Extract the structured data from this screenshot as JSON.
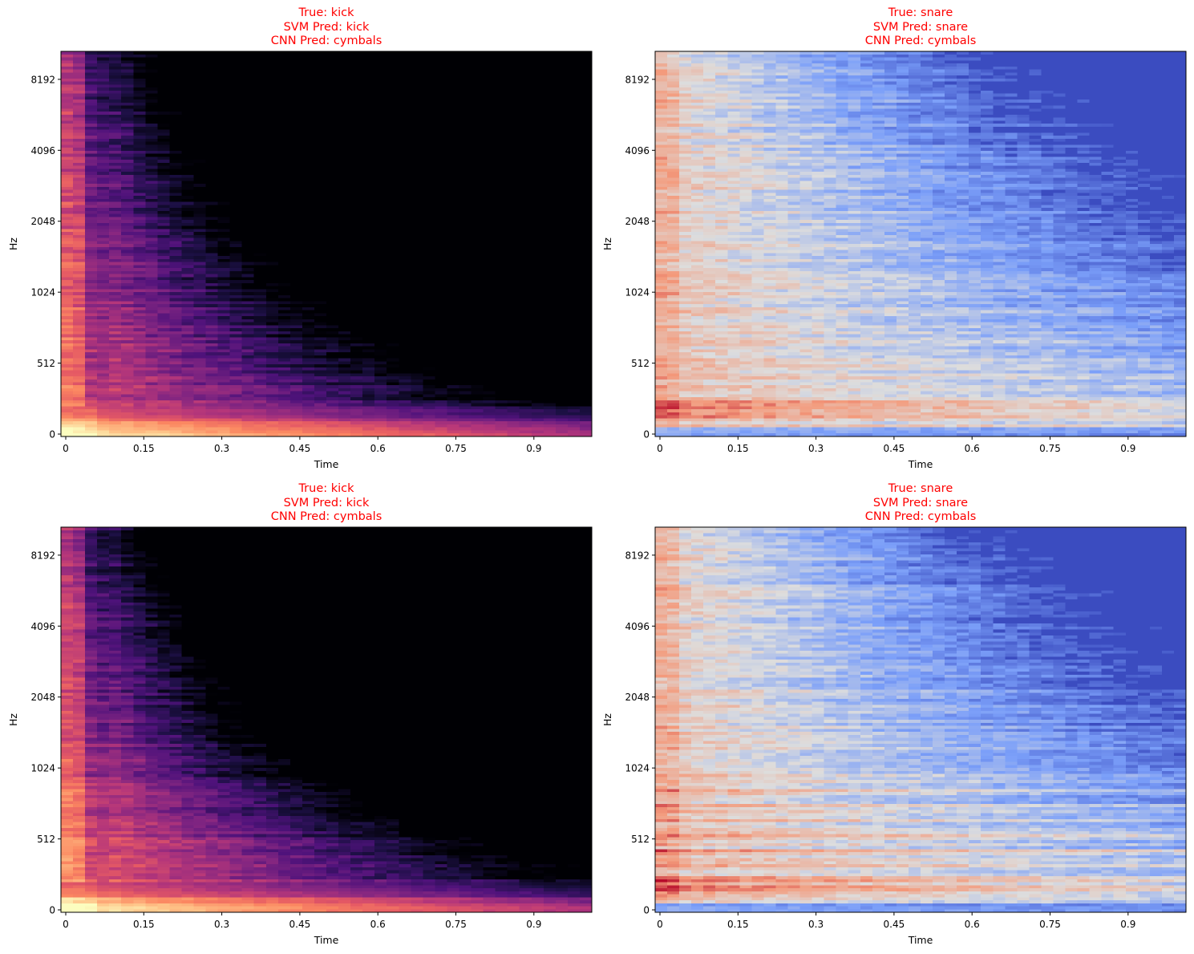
{
  "chart_data": [
    {
      "type": "heatmap",
      "title_lines": [
        "True: kick",
        "SVM Pred: kick",
        "CNN Pred: cymbals"
      ],
      "true_label": "kick",
      "svm_pred": "kick",
      "cnn_pred": "cymbals",
      "title_color": "#ff0000",
      "xlabel": "Time",
      "ylabel": "Hz",
      "xticks": [
        "0",
        "0.15",
        "0.3",
        "0.45",
        "0.6",
        "0.75",
        "0.9"
      ],
      "yticks": [
        "0",
        "512",
        "1024",
        "2048",
        "4096",
        "8192"
      ],
      "xlim": [
        0,
        1.0
      ],
      "ylim": [
        0,
        11025
      ],
      "yscale": "mel/symlog",
      "colormap": "magma",
      "grid": false
    },
    {
      "type": "heatmap",
      "title_lines": [
        "True: snare",
        "SVM Pred: snare",
        "CNN Pred: cymbals"
      ],
      "true_label": "snare",
      "svm_pred": "snare",
      "cnn_pred": "cymbals",
      "title_color": "#ff0000",
      "xlabel": "Time",
      "ylabel": "Hz",
      "xticks": [
        "0",
        "0.15",
        "0.3",
        "0.45",
        "0.6",
        "0.75",
        "0.9"
      ],
      "yticks": [
        "0",
        "512",
        "1024",
        "2048",
        "4096",
        "8192"
      ],
      "xlim": [
        0,
        1.0
      ],
      "ylim": [
        0,
        11025
      ],
      "yscale": "mel/symlog",
      "colormap": "coolwarm",
      "grid": false
    },
    {
      "type": "heatmap",
      "title_lines": [
        "True: kick",
        "SVM Pred: kick",
        "CNN Pred: cymbals"
      ],
      "true_label": "kick",
      "svm_pred": "kick",
      "cnn_pred": "cymbals",
      "title_color": "#ff0000",
      "xlabel": "Time",
      "ylabel": "Hz",
      "xticks": [
        "0",
        "0.15",
        "0.3",
        "0.45",
        "0.6",
        "0.75",
        "0.9"
      ],
      "yticks": [
        "0",
        "512",
        "1024",
        "2048",
        "4096",
        "8192"
      ],
      "xlim": [
        0,
        1.0
      ],
      "ylim": [
        0,
        11025
      ],
      "yscale": "mel/symlog",
      "colormap": "magma",
      "grid": false
    },
    {
      "type": "heatmap",
      "title_lines": [
        "True: snare",
        "SVM Pred: snare",
        "CNN Pred: cymbals"
      ],
      "true_label": "snare",
      "svm_pred": "snare",
      "cnn_pred": "cymbals",
      "title_color": "#ff0000",
      "xlabel": "Time",
      "ylabel": "Hz",
      "xticks": [
        "0",
        "0.15",
        "0.3",
        "0.45",
        "0.6",
        "0.75",
        "0.9"
      ],
      "yticks": [
        "0",
        "512",
        "1024",
        "2048",
        "4096",
        "8192"
      ],
      "xlim": [
        0,
        1.0
      ],
      "ylim": [
        0,
        11025
      ],
      "yscale": "mel/symlog",
      "colormap": "coolwarm",
      "grid": false
    }
  ]
}
